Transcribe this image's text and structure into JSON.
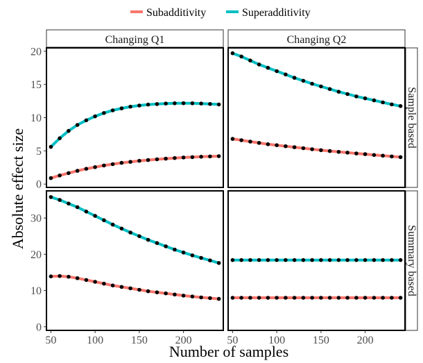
{
  "chart_data": {
    "type": "line",
    "xlabel": "Number of samples",
    "ylabel": "Absolute effect size",
    "x": [
      50,
      60,
      70,
      80,
      90,
      100,
      110,
      120,
      130,
      140,
      150,
      160,
      170,
      180,
      190,
      200,
      210,
      220,
      230,
      240
    ],
    "xlim": [
      45,
      245
    ],
    "xticks": [
      50,
      100,
      150,
      200
    ],
    "legend": {
      "position": "top",
      "entries": [
        {
          "name": "Subadditivity",
          "color": "#f8766d"
        },
        {
          "name": "Superadditivity",
          "color": "#00bfc4"
        }
      ]
    },
    "columns": [
      "Changing Q1",
      "Changing Q2"
    ],
    "rows": [
      "Sample based",
      "Summary based"
    ],
    "row_ylims": [
      [
        -0.5,
        20.5
      ],
      [
        -1,
        37.5
      ]
    ],
    "row_yticks": [
      [
        0,
        5,
        10,
        15,
        20
      ],
      [
        0,
        10,
        20,
        30
      ]
    ],
    "panels": [
      {
        "column": "Changing Q1",
        "row": "Sample based",
        "series": [
          {
            "name": "Subadditivity",
            "values": [
              0.9,
              1.3,
              1.65,
              2.0,
              2.3,
              2.55,
              2.8,
              3.0,
              3.2,
              3.35,
              3.5,
              3.62,
              3.73,
              3.83,
              3.92,
              4.0,
              4.06,
              4.12,
              4.16,
              4.2
            ]
          },
          {
            "name": "Superadditivity",
            "values": [
              5.6,
              6.9,
              8.0,
              8.9,
              9.6,
              10.2,
              10.7,
              11.1,
              11.4,
              11.65,
              11.83,
              11.96,
              12.05,
              12.12,
              12.16,
              12.17,
              12.16,
              12.12,
              12.06,
              11.98
            ]
          }
        ]
      },
      {
        "column": "Changing Q2",
        "row": "Sample based",
        "series": [
          {
            "name": "Subadditivity",
            "values": [
              6.8,
              6.6,
              6.4,
              6.2,
              6.0,
              5.85,
              5.7,
              5.55,
              5.4,
              5.25,
              5.1,
              4.97,
              4.85,
              4.73,
              4.61,
              4.5,
              4.38,
              4.27,
              4.16,
              4.05
            ]
          },
          {
            "name": "Superadditivity",
            "values": [
              19.7,
              19.2,
              18.6,
              18.0,
              17.5,
              17.0,
              16.5,
              16.0,
              15.55,
              15.1,
              14.7,
              14.3,
              13.9,
              13.55,
              13.2,
              12.9,
              12.6,
              12.3,
              12.0,
              11.75
            ]
          }
        ]
      },
      {
        "column": "Changing Q1",
        "row": "Summary based",
        "series": [
          {
            "name": "Subadditivity",
            "values": [
              13.9,
              14.0,
              13.8,
              13.4,
              12.9,
              12.4,
              11.9,
              11.4,
              11.0,
              10.6,
              10.2,
              9.8,
              9.5,
              9.2,
              8.9,
              8.6,
              8.35,
              8.1,
              7.9,
              7.7
            ]
          },
          {
            "name": "Superadditivity",
            "values": [
              35.8,
              35.0,
              34.0,
              33.0,
              31.8,
              30.6,
              29.4,
              28.2,
              27.1,
              26.0,
              25.0,
              24.0,
              23.1,
              22.2,
              21.3,
              20.5,
              19.7,
              19.0,
              18.3,
              17.6
            ]
          }
        ]
      },
      {
        "column": "Changing Q2",
        "row": "Summary based",
        "series": [
          {
            "name": "Subadditivity",
            "values": [
              8.0,
              8.0,
              8.0,
              8.0,
              8.0,
              8.0,
              8.0,
              8.0,
              8.0,
              8.0,
              8.0,
              8.0,
              8.0,
              8.0,
              8.0,
              8.0,
              8.0,
              8.0,
              8.0,
              8.0
            ]
          },
          {
            "name": "Superadditivity",
            "values": [
              18.4,
              18.4,
              18.4,
              18.4,
              18.4,
              18.4,
              18.4,
              18.4,
              18.4,
              18.4,
              18.4,
              18.4,
              18.4,
              18.4,
              18.4,
              18.4,
              18.4,
              18.4,
              18.4,
              18.4
            ]
          }
        ]
      }
    ]
  }
}
